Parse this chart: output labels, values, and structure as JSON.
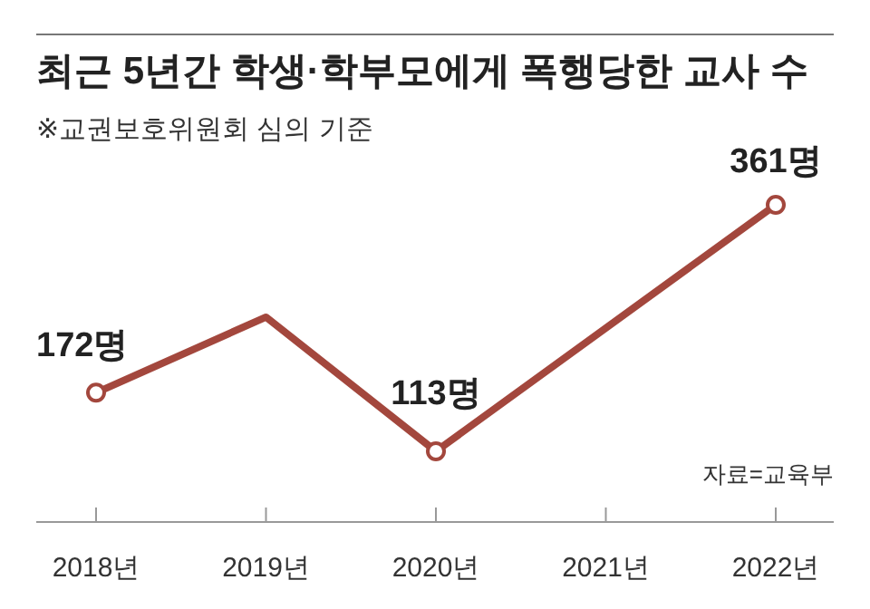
{
  "chart_data": {
    "type": "line",
    "title": "최근 5년간 학생·학부모에게 폭행당한 교사 수",
    "subtitle": "※교권보호위원회 심의 기준",
    "categories": [
      "2018년",
      "2019년",
      "2020년",
      "2021년",
      "2022년"
    ],
    "series": [
      {
        "color": "#a3473d",
        "values": [
          172,
          248,
          113,
          237,
          361
        ],
        "value_labels": [
          "172명",
          null,
          "113명",
          null,
          "361명"
        ]
      }
    ],
    "marker": "circle",
    "line_style": "solid",
    "annotations": [
      "자료=교육부"
    ]
  }
}
